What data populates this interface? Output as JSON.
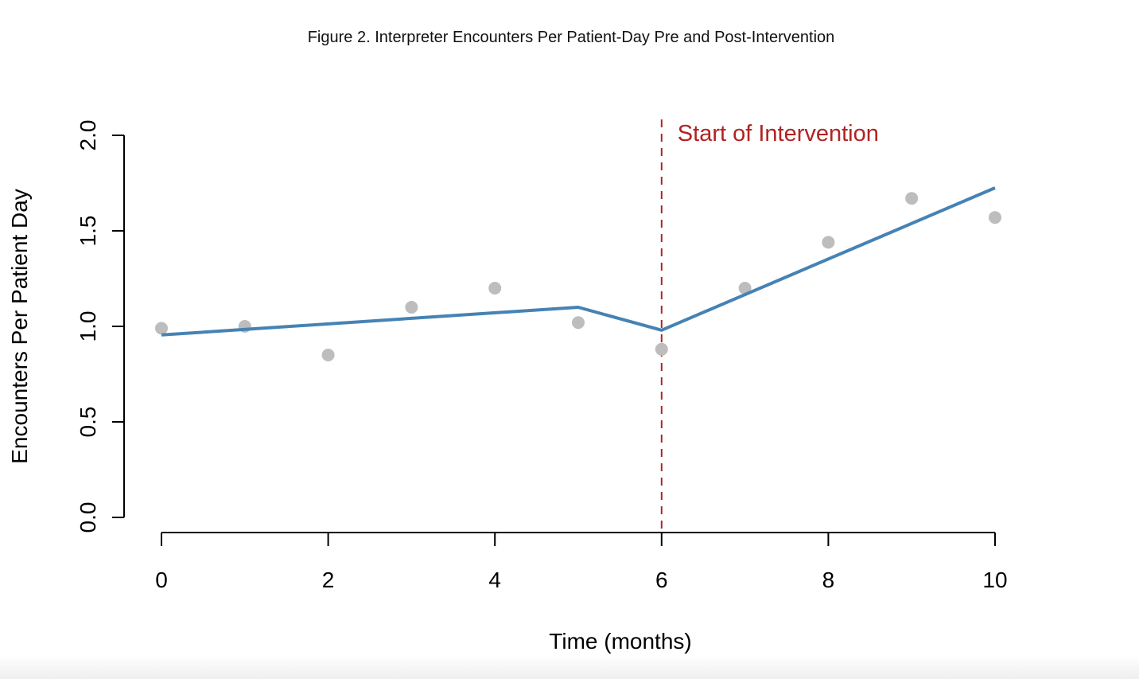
{
  "chart_data": {
    "type": "scatter",
    "title": "Figure 2. Interpreter Encounters Per Patient-Day Pre and Post-Intervention",
    "xlabel": "Time (months)",
    "ylabel": "Encounters Per Patient Day",
    "xlim": [
      0,
      10
    ],
    "ylim": [
      0,
      2
    ],
    "x_ticks": [
      0,
      2,
      4,
      6,
      8,
      10
    ],
    "y_ticks": [
      0.0,
      0.5,
      1.0,
      1.5,
      2.0
    ],
    "x_tick_labels": [
      "0",
      "2",
      "4",
      "6",
      "8",
      "10"
    ],
    "y_tick_labels": [
      "0.0",
      "0.5",
      "1.0",
      "1.5",
      "2.0"
    ],
    "grid": false,
    "series": [
      {
        "type": "scatter",
        "color": "#bdbdbd",
        "x": [
          0,
          1,
          2,
          3,
          4,
          5,
          6,
          7,
          8,
          9,
          10
        ],
        "y": [
          0.99,
          1.0,
          0.85,
          1.1,
          1.2,
          1.02,
          0.88,
          1.2,
          1.44,
          1.67,
          1.57
        ]
      },
      {
        "type": "line",
        "color": "#4682b4",
        "x": [
          0,
          5,
          6,
          10
        ],
        "y": [
          0.955,
          1.1,
          0.98,
          1.725
        ]
      }
    ],
    "annotations": [
      {
        "type": "vline",
        "x": 6,
        "color": "#b22222",
        "style": "dashed",
        "label": "Start of Intervention"
      }
    ]
  }
}
